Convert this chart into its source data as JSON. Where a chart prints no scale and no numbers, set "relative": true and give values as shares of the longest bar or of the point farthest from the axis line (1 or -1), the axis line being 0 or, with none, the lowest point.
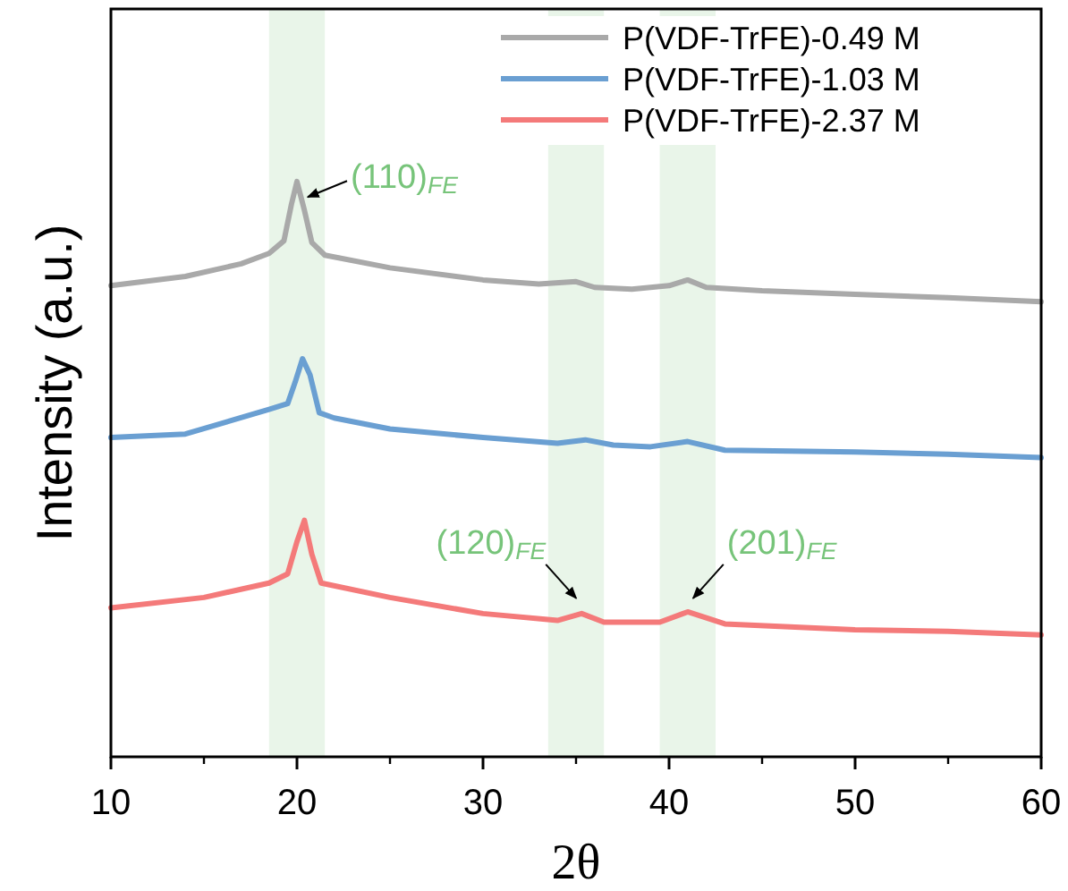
{
  "chart_data": {
    "type": "line",
    "relative": true,
    "xlabel": "2θ",
    "ylabel": "Intensity (a.u.)",
    "xlim": [
      10,
      60
    ],
    "xticks": [
      10,
      20,
      30,
      40,
      50,
      60
    ],
    "legend": "top right",
    "tick_labels": "x",
    "series": [
      {
        "name": "P(VDF-TrFE)-0.49 M",
        "color": "#a9a9a9",
        "x": [
          10,
          14,
          17,
          18.5,
          19.3,
          19.7,
          20,
          20.4,
          20.8,
          21.5,
          25,
          30,
          33,
          35,
          36,
          38,
          40,
          41,
          42,
          45,
          50,
          55,
          60
        ],
        "values": [
          0.819,
          0.835,
          0.857,
          0.875,
          0.897,
          0.96,
          1,
          0.95,
          0.894,
          0.872,
          0.85,
          0.829,
          0.822,
          0.826,
          0.816,
          0.813,
          0.819,
          0.829,
          0.816,
          0.81,
          0.804,
          0.798,
          0.791
        ]
      },
      {
        "name": "P(VDF-TrFE)-1.03 M",
        "color": "#6a9fd2",
        "x": [
          10,
          14,
          18.5,
          19.5,
          19.9,
          20.3,
          20.7,
          21.2,
          22,
          25,
          30,
          34,
          35.5,
          37,
          39,
          41,
          43,
          50,
          55,
          60
        ],
        "values": [
          0.555,
          0.561,
          0.604,
          0.614,
          0.651,
          0.692,
          0.664,
          0.598,
          0.589,
          0.57,
          0.555,
          0.545,
          0.551,
          0.542,
          0.539,
          0.548,
          0.533,
          0.53,
          0.526,
          0.52
        ]
      },
      {
        "name": "P(VDF-TrFE)-2.37 M",
        "color": "#f47a7a",
        "x": [
          10,
          15,
          18.5,
          19.5,
          20,
          20.4,
          20.8,
          21.3,
          25,
          30,
          34,
          35.3,
          36.5,
          39.5,
          41,
          43,
          50,
          55,
          60
        ],
        "values": [
          0.259,
          0.277,
          0.302,
          0.318,
          0.374,
          0.411,
          0.352,
          0.302,
          0.277,
          0.249,
          0.237,
          0.249,
          0.234,
          0.234,
          0.252,
          0.231,
          0.221,
          0.218,
          0.212
        ]
      }
    ],
    "bands": [
      {
        "axis": "x",
        "from": 18.5,
        "to": 21.5,
        "color": "#e9f5e9"
      },
      {
        "axis": "x",
        "from": 33.5,
        "to": 36.5,
        "color": "#e9f5e9"
      },
      {
        "axis": "x",
        "from": 39.5,
        "to": 42.5,
        "color": "#e9f5e9"
      }
    ],
    "annotations": [
      {
        "text": "(110)$_{FE}$",
        "x": 20,
        "y": 0.97
      },
      {
        "text": "(120)$_{FE}$",
        "x": 35.3,
        "y": 0.26
      },
      {
        "text": "(201)$_{FE}$",
        "x": 41,
        "y": 0.26
      }
    ]
  }
}
